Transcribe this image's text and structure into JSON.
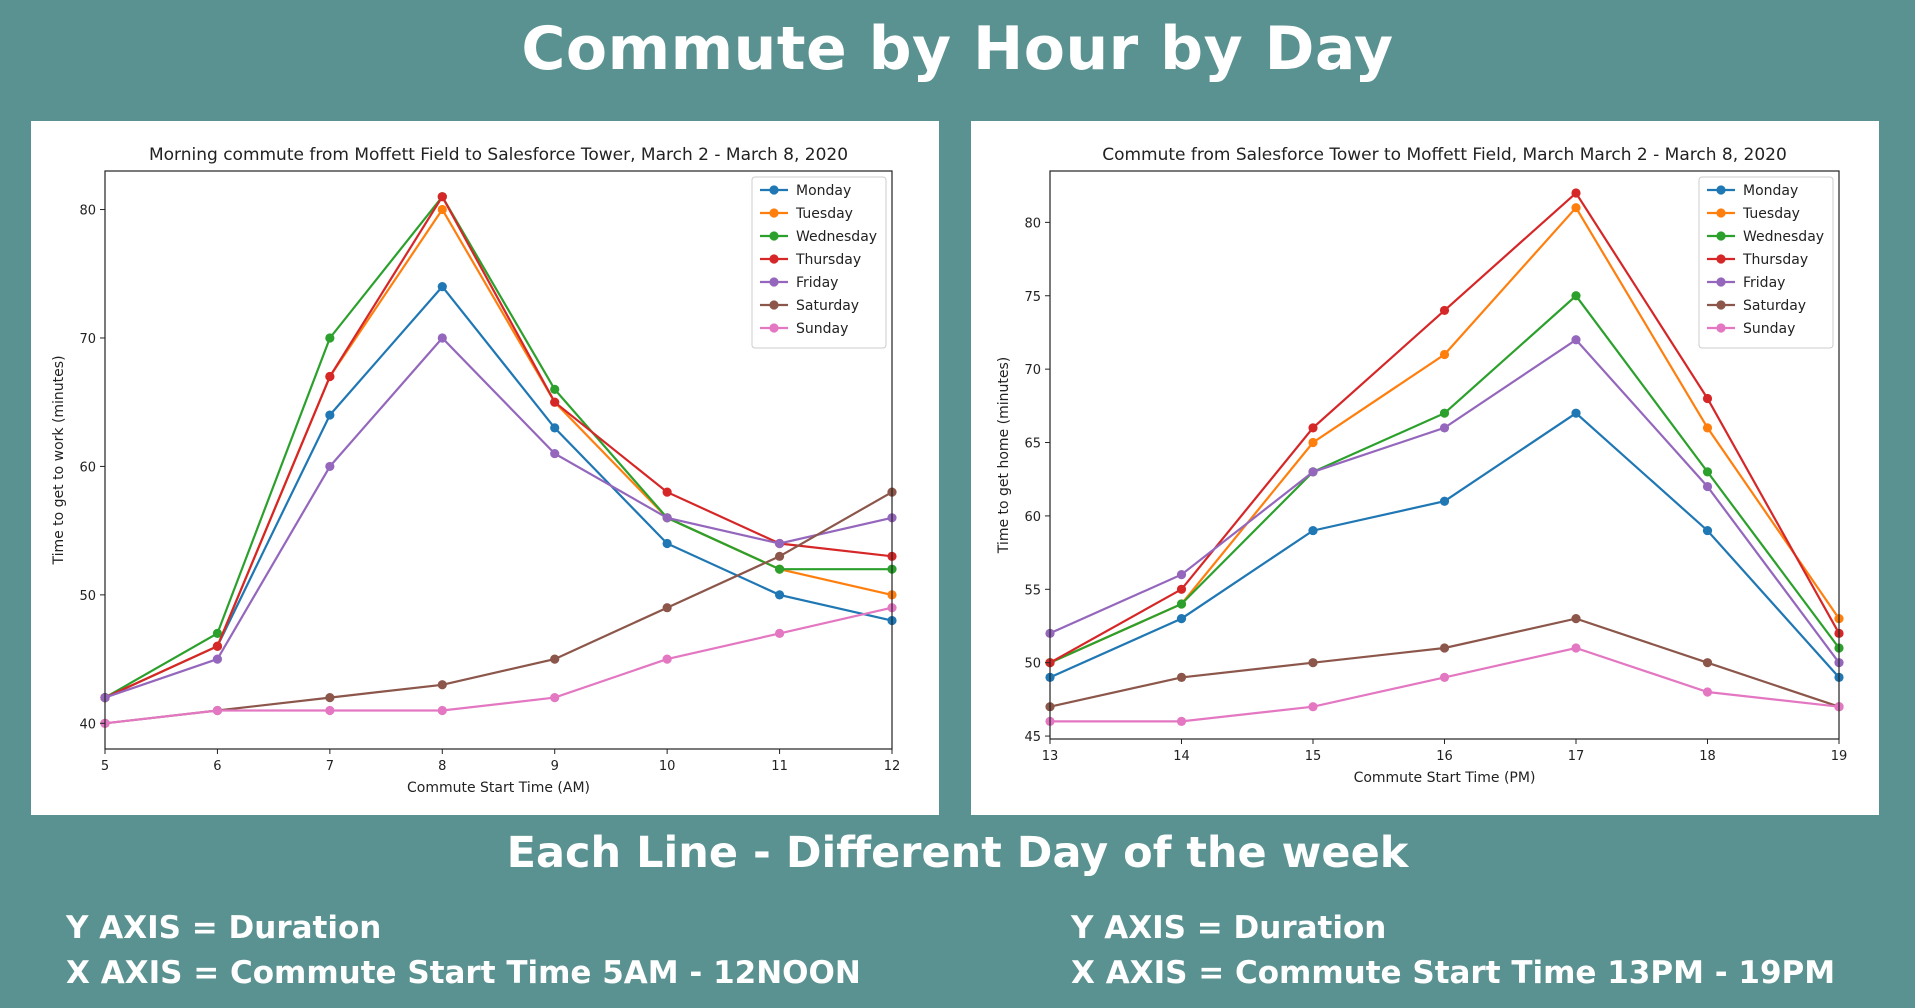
{
  "slide": {
    "title": "Commute by Hour by Day",
    "subtitle": "Each Line - Different Day of the week",
    "notes": {
      "left_y": "Y AXIS = Duration",
      "left_x": "X AXIS = Commute Start Time 5AM - 12NOON",
      "right_y": "Y AXIS = Duration",
      "right_x": "X AXIS = Commute Start Time 13PM - 19PM"
    }
  },
  "chart_data": [
    {
      "type": "line",
      "title": "Morning commute from Moffett Field to Salesforce Tower, March 2 - March 8, 2020",
      "xlabel": "Commute Start Time (AM)",
      "ylabel": "Time to get to work (minutes)",
      "x": [
        5,
        6,
        7,
        8,
        9,
        10,
        11,
        12
      ],
      "xlim": [
        5,
        12
      ],
      "ylim": [
        38,
        83
      ],
      "yticks": [
        40,
        50,
        60,
        70,
        80
      ],
      "grid": false,
      "legend": "top-right",
      "series": [
        {
          "name": "Monday",
          "color": "#1f77b4",
          "values": [
            42,
            46,
            64,
            74,
            63,
            54,
            50,
            48
          ]
        },
        {
          "name": "Tuesday",
          "color": "#ff7f0e",
          "values": [
            42,
            46,
            67,
            80,
            65,
            56,
            52,
            50
          ]
        },
        {
          "name": "Wednesday",
          "color": "#2ca02c",
          "values": [
            42,
            47,
            70,
            81,
            66,
            56,
            52,
            52
          ]
        },
        {
          "name": "Thursday",
          "color": "#d62728",
          "values": [
            42,
            46,
            67,
            81,
            65,
            58,
            54,
            53
          ]
        },
        {
          "name": "Friday",
          "color": "#9467bd",
          "values": [
            42,
            45,
            60,
            70,
            61,
            56,
            54,
            56
          ]
        },
        {
          "name": "Saturday",
          "color": "#8c564b",
          "values": [
            40,
            41,
            42,
            43,
            45,
            49,
            53,
            58
          ]
        },
        {
          "name": "Sunday",
          "color": "#e377c2",
          "values": [
            40,
            41,
            41,
            41,
            42,
            45,
            47,
            49
          ]
        }
      ]
    },
    {
      "type": "line",
      "title": "Commute from Salesforce Tower to Moffett Field, March March 2 - March 8, 2020",
      "xlabel": "Commute Start Time (PM)",
      "ylabel": "Time to get home (minutes)",
      "x": [
        13,
        14,
        15,
        16,
        17,
        18,
        19
      ],
      "xlim": [
        13,
        19
      ],
      "ylim": [
        44.8,
        83.5
      ],
      "yticks": [
        45,
        50,
        55,
        60,
        65,
        70,
        75,
        80
      ],
      "grid": false,
      "legend": "top-right",
      "series": [
        {
          "name": "Monday",
          "color": "#1f77b4",
          "values": [
            49,
            53,
            59,
            61,
            67,
            59,
            49
          ]
        },
        {
          "name": "Tuesday",
          "color": "#ff7f0e",
          "values": [
            50,
            54,
            65,
            71,
            81,
            66,
            53
          ]
        },
        {
          "name": "Wednesday",
          "color": "#2ca02c",
          "values": [
            50,
            54,
            63,
            67,
            75,
            63,
            51
          ]
        },
        {
          "name": "Thursday",
          "color": "#d62728",
          "values": [
            50,
            55,
            66,
            74,
            82,
            68,
            52
          ]
        },
        {
          "name": "Friday",
          "color": "#9467bd",
          "values": [
            52,
            56,
            63,
            66,
            72,
            62,
            50
          ]
        },
        {
          "name": "Saturday",
          "color": "#8c564b",
          "values": [
            47,
            49,
            50,
            51,
            53,
            50,
            47
          ]
        },
        {
          "name": "Sunday",
          "color": "#e377c2",
          "values": [
            46,
            46,
            47,
            49,
            51,
            48,
            47
          ]
        }
      ]
    }
  ]
}
